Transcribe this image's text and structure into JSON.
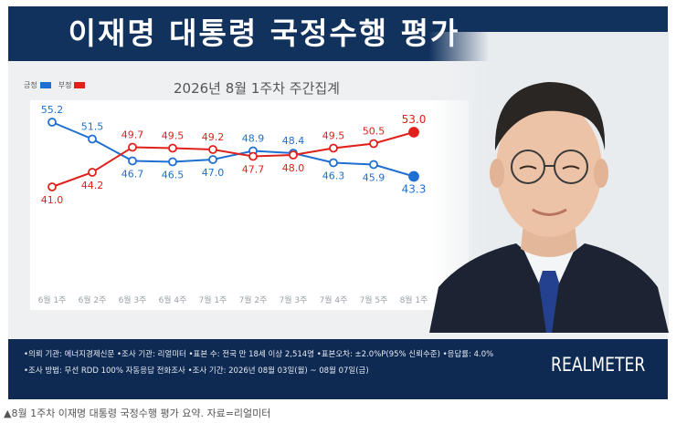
{
  "header": {
    "title": "이재명 대통령 국정수행 평가"
  },
  "legend": {
    "positive": "긍정",
    "negative": "부정"
  },
  "subtitle": "2026년 8월 1주차 주간집계",
  "colors": {
    "positive": "#1f6fd1",
    "negative": "#e0201b",
    "header_bg": "#12325e",
    "footer_bg": "#0f2a52"
  },
  "chart_data": {
    "type": "line",
    "title": "",
    "xlabel": "",
    "ylabel": "",
    "categories": [
      "6월 1주",
      "6월 2주",
      "6월 3주",
      "6월 4주",
      "7월 1주",
      "7월 2주",
      "7월 3주",
      "7월 4주",
      "7월 5주",
      "8월 1주"
    ],
    "series": [
      {
        "name": "긍정",
        "color": "#1f6fd1",
        "values": [
          55.2,
          51.5,
          46.7,
          46.5,
          47.0,
          48.9,
          48.4,
          46.3,
          45.9,
          43.3
        ]
      },
      {
        "name": "부정",
        "color": "#e0201b",
        "values": [
          41.0,
          44.2,
          49.7,
          49.5,
          49.2,
          47.7,
          48.0,
          49.5,
          50.5,
          53.0
        ]
      }
    ],
    "grid": false,
    "legend_position": "top-left"
  },
  "footer": {
    "line1": "•의뢰 기관: 에너지경제신문 •조사 기관: 리얼미터 •표본 수: 전국 만 18세 이상 2,514명 •표본오차: ±2.0%P(95% 신뢰수준) •응답률: 4.0%",
    "line2": "•조사 방법: 무선 RDD 100% 자동응답 전화조사 •조사 기간: 2026년 08월 03일(월) ~ 08월 07일(금)",
    "brand": "REALMETER"
  },
  "caption": "▲8월 1주차 이재명 대통령 국정수행 평가 요약. 자료=리얼미터"
}
